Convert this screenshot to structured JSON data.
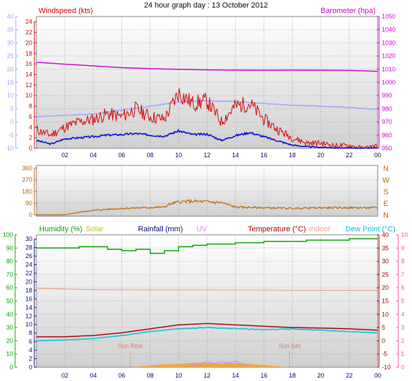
{
  "title": "24 hour graph day : 13 October 2012",
  "colors": {
    "wind": "#d00000",
    "wind_avg": "#0000d0",
    "baro": "#cc00cc",
    "temp_axis": "#a0a0ff",
    "dir": "#c06000",
    "humidity": "#00a000",
    "solar": "#c0c000",
    "rain": "#000080",
    "uv": "#e080ff",
    "temp": "#a00000",
    "indoor": "#f0a080",
    "dew": "#00c0e0",
    "uvaxis": "#ff50a0",
    "plot_bg": "#e8e8e8",
    "sunline": "#e08060",
    "solar_fill": "#f0a030"
  },
  "chart_data": [
    {
      "type": "line",
      "panel": "wind-baro",
      "xlabel": "",
      "x_ticks": [
        "02",
        "04",
        "06",
        "08",
        "10",
        "12",
        "14",
        "16",
        "18",
        "20",
        "22",
        "00"
      ],
      "left_axis_title": "Windspeed (kts)",
      "left_ticks": [
        "0",
        "2",
        "4",
        "6",
        "8",
        "10",
        "12",
        "14",
        "16",
        "18",
        "20",
        "22",
        "24"
      ],
      "outer_axis_ticks": [
        "-10",
        "-5",
        "0",
        "5",
        "10",
        "15",
        "20",
        "25",
        "30",
        "35",
        "40"
      ],
      "right_axis_title": "Barometer (hpa)",
      "right_ticks": [
        "950",
        "960",
        "970",
        "980",
        "990",
        "1000",
        "1010",
        "1020",
        "1030",
        "1040",
        "1050"
      ],
      "ylim_wind": [
        0,
        25
      ],
      "ylim_baro": [
        950,
        1050
      ],
      "ylim_outer": [
        -10,
        40
      ],
      "series": [
        {
          "key": "barometer",
          "axis": "baro",
          "x": [
            0,
            2,
            4,
            6,
            8,
            10,
            12,
            14,
            16,
            18,
            20,
            22,
            24
          ],
          "values": [
            1015.2,
            1013.8,
            1012.5,
            1011.2,
            1010.4,
            1009.9,
            1009.5,
            1009.3,
            1009.2,
            1009.3,
            1009.2,
            1009.1,
            1008.4
          ]
        },
        {
          "key": "outdoor-temp",
          "axis": "outer",
          "x": [
            0,
            2,
            4,
            6,
            8,
            10,
            12,
            14,
            16,
            18,
            20,
            22,
            24
          ],
          "values": [
            2.0,
            2.5,
            3.0,
            4.5,
            6.0,
            7.5,
            8.0,
            7.8,
            7.0,
            6.3,
            6.0,
            5.5,
            4.8
          ]
        },
        {
          "key": "wind-average",
          "axis": "wind",
          "x": [
            0,
            1,
            2,
            3,
            4,
            5,
            6,
            7,
            8,
            9,
            10,
            11,
            12,
            13,
            14,
            15,
            16,
            17,
            18,
            19,
            20,
            21,
            22,
            23,
            24
          ],
          "values": [
            1.5,
            0.8,
            1.8,
            2.0,
            2.2,
            2.5,
            2.6,
            2.8,
            2.5,
            2.3,
            3.3,
            2.6,
            2.7,
            1.5,
            2.4,
            3.0,
            2.2,
            1.4,
            0.6,
            0.3,
            0.2,
            0.1,
            0.0,
            0.0,
            0.1
          ]
        },
        {
          "key": "wind-gust",
          "axis": "wind",
          "x": [
            0,
            1,
            2,
            3,
            4,
            5,
            6,
            7,
            8,
            9,
            10,
            11,
            12,
            13,
            14,
            15,
            16,
            17,
            18,
            19,
            20,
            21,
            22,
            23,
            24
          ],
          "values": [
            3.5,
            2.5,
            4.0,
            5.0,
            5.5,
            6.5,
            6.0,
            7.5,
            6.0,
            5.5,
            10.5,
            8.5,
            9.0,
            5.0,
            8.0,
            8.5,
            5.5,
            3.5,
            2.0,
            1.0,
            1.0,
            0.5,
            0.5,
            0.0,
            0.5
          ]
        }
      ]
    },
    {
      "type": "line",
      "panel": "wind-direction",
      "left_ticks": [
        "0",
        "90",
        "180",
        "270",
        "360"
      ],
      "right_ticks": [
        "N",
        "E",
        "S",
        "W",
        "N"
      ],
      "ylim": [
        0,
        360
      ],
      "series": [
        {
          "key": "wind-direction",
          "x": [
            0,
            2,
            3,
            4,
            6,
            7.5,
            9,
            9.3,
            10,
            11,
            12,
            13,
            14,
            16,
            18,
            20,
            22,
            24
          ],
          "values": [
            0,
            0,
            20,
            35,
            50,
            55,
            60,
            80,
            100,
            105,
            100,
            95,
            60,
            55,
            50,
            55,
            55,
            55
          ]
        }
      ]
    },
    {
      "type": "line",
      "panel": "humidity-temp",
      "x_ticks": [
        "02",
        "04",
        "06",
        "08",
        "10",
        "12",
        "14",
        "16",
        "18",
        "20",
        "22",
        "00"
      ],
      "legend": [
        "Humidity (%)",
        "Solar",
        "Rainfall (mm)",
        "UV",
        "Temperature (°C)",
        "Indoor",
        "Dew Point (°C)"
      ],
      "humidity_ticks": [
        "0",
        "10",
        "20",
        "30",
        "40",
        "50",
        "60",
        "70",
        "80",
        "90",
        "100"
      ],
      "rain_ticks": [
        "0",
        "2",
        "4",
        "6",
        "8",
        "10",
        "12",
        "14",
        "16",
        "18",
        "20",
        "22",
        "24",
        "26",
        "28",
        "30"
      ],
      "temp_ticks": [
        "-10",
        "-5",
        "0",
        "5",
        "10",
        "15",
        "20",
        "25",
        "30",
        "35",
        "40"
      ],
      "uv_ticks": [
        "0",
        "1",
        "2",
        "3",
        "4",
        "5",
        "6",
        "7",
        "8",
        "9",
        "10"
      ],
      "sunrise_label": "Sun Rise",
      "sunset_label": "Sun Set",
      "sunrise_hour": 6.6,
      "sunset_hour": 17.8,
      "ylim_humidity": [
        0,
        100
      ],
      "ylim_temp": [
        -10,
        40
      ],
      "series": [
        {
          "key": "humidity",
          "axis": "humidity",
          "x": [
            0,
            2,
            3,
            4,
            5,
            6,
            7,
            8,
            9,
            10,
            11,
            12,
            13,
            14,
            15,
            16,
            17,
            18,
            19,
            20,
            21,
            22,
            23,
            24
          ],
          "values": [
            90,
            90,
            91,
            91,
            89,
            88,
            89,
            86,
            88,
            91,
            92,
            93,
            93,
            94,
            94,
            95,
            95,
            95,
            96,
            96,
            96,
            97,
            97,
            97
          ]
        },
        {
          "key": "indoor-temp",
          "axis": "temp",
          "x": [
            0,
            4,
            8,
            12,
            16,
            20,
            24
          ],
          "values": [
            19.8,
            19.3,
            19.2,
            19.2,
            19.1,
            19.0,
            19.0
          ]
        },
        {
          "key": "temperature",
          "axis": "temp",
          "x": [
            0,
            2,
            4,
            6,
            8,
            10,
            12,
            14,
            16,
            18,
            20,
            22,
            24
          ],
          "values": [
            1.5,
            1.5,
            2.0,
            3.0,
            4.5,
            6.0,
            6.5,
            6.0,
            5.5,
            5.0,
            4.8,
            4.5,
            4.0
          ]
        },
        {
          "key": "dew-point",
          "axis": "temp",
          "x": [
            0,
            2,
            4,
            6,
            8,
            10,
            12,
            14,
            16,
            18,
            20,
            22,
            24
          ],
          "values": [
            0.0,
            0.3,
            0.8,
            2.0,
            3.5,
            4.5,
            5.0,
            4.6,
            4.2,
            4.5,
            4.0,
            3.5,
            3.0
          ]
        },
        {
          "key": "solar",
          "axis": "rain",
          "x": [
            6.6,
            7,
            8,
            9,
            10,
            11,
            12,
            13,
            14,
            15,
            16,
            17,
            17.8
          ],
          "values": [
            0,
            0.1,
            0.4,
            0.7,
            0.8,
            1.0,
            1.0,
            0.9,
            1.0,
            0.8,
            0.5,
            0.2,
            0
          ]
        },
        {
          "key": "uv",
          "axis": "rain",
          "x": [
            10.8,
            11.5,
            12,
            12.5,
            13,
            13.5,
            14,
            14.5,
            15
          ],
          "values": [
            0,
            0.8,
            1.4,
            0.9,
            1.3,
            1.1,
            1.4,
            0.8,
            0
          ]
        }
      ]
    }
  ]
}
